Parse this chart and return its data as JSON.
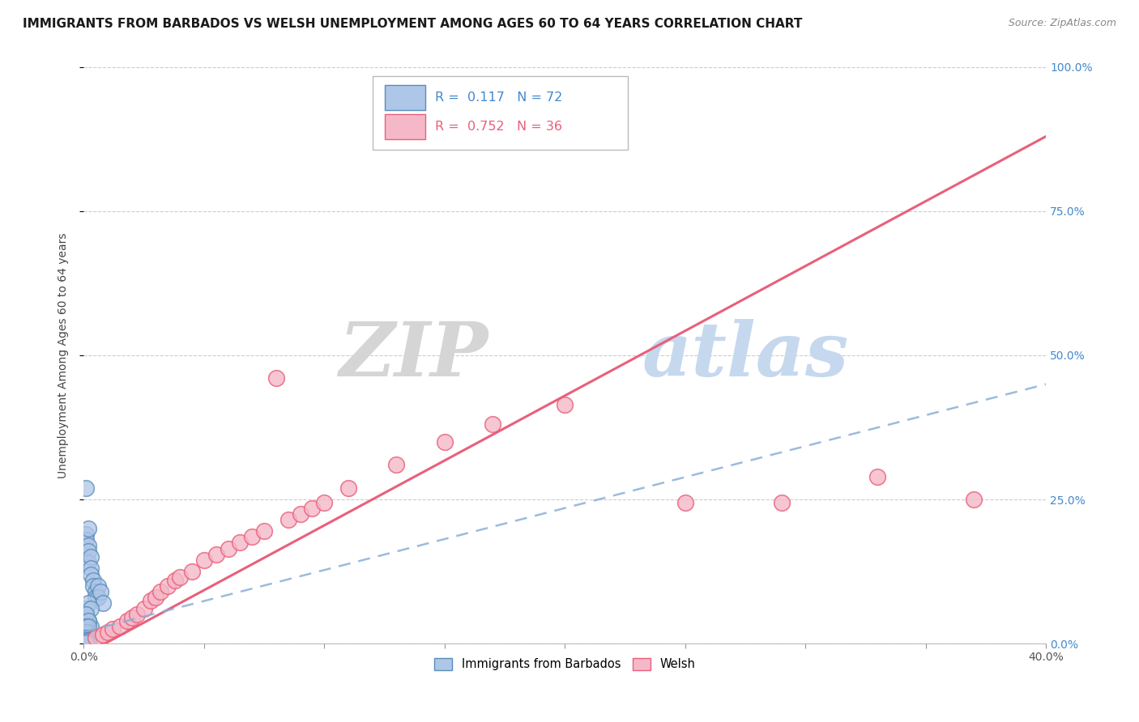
{
  "title": "IMMIGRANTS FROM BARBADOS VS WELSH UNEMPLOYMENT AMONG AGES 60 TO 64 YEARS CORRELATION CHART",
  "source": "Source: ZipAtlas.com",
  "ylabel": "Unemployment Among Ages 60 to 64 years",
  "xlim": [
    0.0,
    0.4
  ],
  "ylim": [
    0.0,
    1.0
  ],
  "xticks": [
    0.0,
    0.05,
    0.1,
    0.15,
    0.2,
    0.25,
    0.3,
    0.35,
    0.4
  ],
  "yticks": [
    0.0,
    0.25,
    0.5,
    0.75,
    1.0
  ],
  "xtick_labels": [
    "0.0%",
    "",
    "",
    "",
    "",
    "",
    "",
    "",
    "40.0%"
  ],
  "ytick_labels": [
    "0.0%",
    "25.0%",
    "50.0%",
    "75.0%",
    "100.0%"
  ],
  "watermark_zip": "ZIP",
  "watermark_atlas": "atlas",
  "barbados_R": 0.117,
  "barbados_N": 72,
  "welsh_R": 0.752,
  "welsh_N": 36,
  "barbados_color": "#aec6e8",
  "barbados_edge_color": "#5b8db8",
  "welsh_color": "#f5b8c8",
  "welsh_edge_color": "#e8607a",
  "trend_barbados_color": "#8ab0d8",
  "trend_welsh_color": "#e8607a",
  "barbados_x": [
    0.001,
    0.001,
    0.001,
    0.002,
    0.002,
    0.002,
    0.002,
    0.003,
    0.003,
    0.003,
    0.004,
    0.004,
    0.005,
    0.005,
    0.006,
    0.006,
    0.007,
    0.008,
    0.001,
    0.001,
    0.002,
    0.002,
    0.003,
    0.003,
    0.001,
    0.001,
    0.002,
    0.001,
    0.001,
    0.002,
    0.001,
    0.001,
    0.002,
    0.001,
    0.002,
    0.001,
    0.001,
    0.001,
    0.002,
    0.001,
    0.001,
    0.001,
    0.002,
    0.001,
    0.001,
    0.001,
    0.002,
    0.001,
    0.002,
    0.001,
    0.001,
    0.001,
    0.001,
    0.001,
    0.002,
    0.001,
    0.001,
    0.001,
    0.001,
    0.001,
    0.001,
    0.001,
    0.001,
    0.002,
    0.001,
    0.001,
    0.001,
    0.001,
    0.001,
    0.001,
    0.001,
    0.001
  ],
  "barbados_y": [
    0.27,
    0.19,
    0.18,
    0.2,
    0.17,
    0.16,
    0.14,
    0.15,
    0.13,
    0.12,
    0.11,
    0.1,
    0.09,
    0.08,
    0.1,
    0.08,
    0.09,
    0.07,
    0.06,
    0.05,
    0.07,
    0.04,
    0.06,
    0.03,
    0.05,
    0.02,
    0.04,
    0.03,
    0.01,
    0.02,
    0.015,
    0.01,
    0.005,
    0.02,
    0.03,
    0.01,
    0.005,
    0.008,
    0.01,
    0.006,
    0.004,
    0.003,
    0.007,
    0.002,
    0.001,
    0.005,
    0.003,
    0.004,
    0.006,
    0.002,
    0.003,
    0.001,
    0.004,
    0.002,
    0.005,
    0.003,
    0.002,
    0.001,
    0.004,
    0.003,
    0.002,
    0.005,
    0.001,
    0.003,
    0.002,
    0.004,
    0.003,
    0.002,
    0.001,
    0.003,
    0.004,
    0.002
  ],
  "welsh_x": [
    0.005,
    0.008,
    0.01,
    0.012,
    0.015,
    0.018,
    0.02,
    0.022,
    0.025,
    0.028,
    0.03,
    0.032,
    0.035,
    0.038,
    0.04,
    0.045,
    0.05,
    0.055,
    0.06,
    0.065,
    0.07,
    0.075,
    0.08,
    0.085,
    0.09,
    0.095,
    0.1,
    0.11,
    0.13,
    0.15,
    0.17,
    0.2,
    0.25,
    0.29,
    0.33,
    0.37
  ],
  "welsh_y": [
    0.01,
    0.015,
    0.02,
    0.025,
    0.03,
    0.04,
    0.045,
    0.05,
    0.06,
    0.075,
    0.08,
    0.09,
    0.1,
    0.11,
    0.115,
    0.125,
    0.145,
    0.155,
    0.165,
    0.175,
    0.185,
    0.195,
    0.46,
    0.215,
    0.225,
    0.235,
    0.245,
    0.27,
    0.31,
    0.35,
    0.38,
    0.415,
    0.245,
    0.245,
    0.29,
    0.25
  ],
  "welsh_trend_x0": 0.0,
  "welsh_trend_y0": -0.02,
  "welsh_trend_x1": 0.4,
  "welsh_trend_y1": 0.88,
  "barbados_trend_x0": 0.0,
  "barbados_trend_y0": 0.02,
  "barbados_trend_x1": 0.4,
  "barbados_trend_y1": 0.45
}
